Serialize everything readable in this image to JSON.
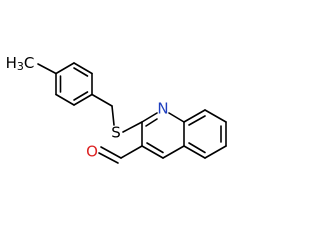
{
  "atoms": {
    "methyl": {
      "h": "H",
      "sub": "3",
      "c": "C"
    },
    "s": "S",
    "n": "N",
    "o": "O"
  }
}
